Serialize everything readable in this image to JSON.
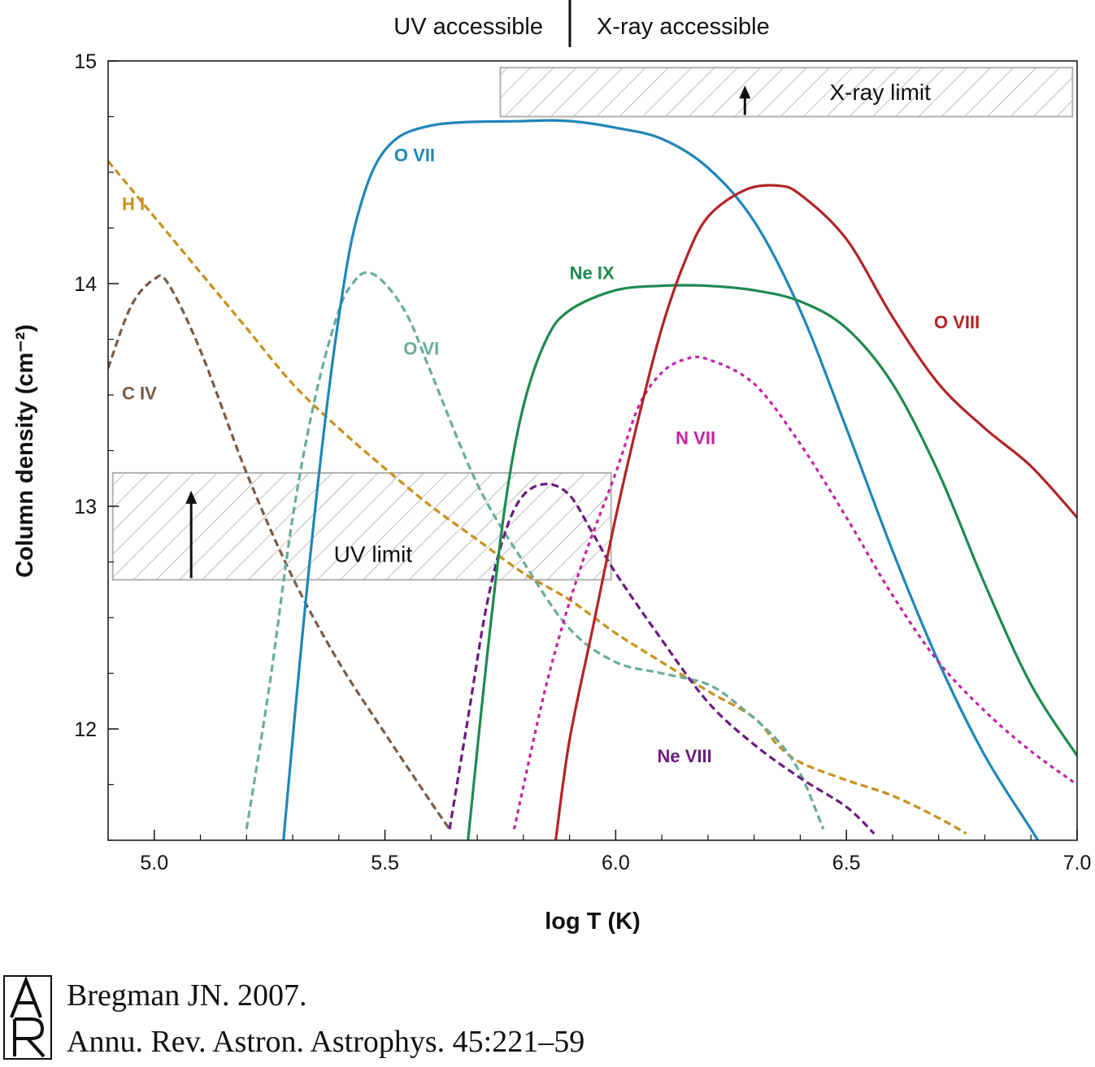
{
  "header": {
    "left_label": "UV accessible",
    "right_label": "X-ray accessible"
  },
  "chart_data": {
    "type": "line",
    "xlabel": "log T  (K)",
    "ylabel": "Column density (cm⁻²)",
    "xlim": [
      4.9,
      7.0
    ],
    "ylim": [
      11.5,
      15.0
    ],
    "x_ticks": [
      "5.0",
      "5.5",
      "6.0",
      "6.5",
      "7.0"
    ],
    "y_ticks": [
      "12",
      "13",
      "14",
      "15"
    ],
    "grid": false,
    "series": [
      {
        "name": "H I",
        "color": "#c8901a",
        "dash": "dashed",
        "points": [
          [
            4.9,
            14.55
          ],
          [
            5.0,
            14.3
          ],
          [
            5.1,
            14.05
          ],
          [
            5.2,
            13.8
          ],
          [
            5.3,
            13.55
          ],
          [
            5.4,
            13.35
          ],
          [
            5.5,
            13.17
          ],
          [
            5.6,
            13.0
          ],
          [
            5.7,
            12.85
          ],
          [
            5.8,
            12.7
          ],
          [
            5.9,
            12.58
          ],
          [
            6.0,
            12.43
          ],
          [
            6.1,
            12.3
          ],
          [
            6.2,
            12.17
          ],
          [
            6.3,
            12.05
          ],
          [
            6.35,
            11.93
          ],
          [
            6.4,
            11.85
          ],
          [
            6.5,
            11.77
          ],
          [
            6.6,
            11.7
          ],
          [
            6.7,
            11.6
          ],
          [
            6.76,
            11.53
          ]
        ]
      },
      {
        "name": "C IV",
        "color": "#7a5a44",
        "dash": "dashed",
        "points": [
          [
            4.9,
            13.62
          ],
          [
            4.95,
            13.9
          ],
          [
            5.0,
            14.02
          ],
          [
            5.03,
            14.0
          ],
          [
            5.1,
            13.7
          ],
          [
            5.2,
            13.15
          ],
          [
            5.3,
            12.68
          ],
          [
            5.4,
            12.3
          ],
          [
            5.5,
            11.98
          ],
          [
            5.6,
            11.67
          ],
          [
            5.64,
            11.55
          ]
        ]
      },
      {
        "name": "O VI",
        "color": "#6aab9c",
        "dash": "dashed",
        "points": [
          [
            5.2,
            11.55
          ],
          [
            5.25,
            12.2
          ],
          [
            5.3,
            12.95
          ],
          [
            5.35,
            13.5
          ],
          [
            5.4,
            13.88
          ],
          [
            5.43,
            14.0
          ],
          [
            5.46,
            14.05
          ],
          [
            5.5,
            14.0
          ],
          [
            5.55,
            13.85
          ],
          [
            5.6,
            13.6
          ],
          [
            5.7,
            13.1
          ],
          [
            5.8,
            12.75
          ],
          [
            5.9,
            12.45
          ],
          [
            6.0,
            12.3
          ],
          [
            6.1,
            12.25
          ],
          [
            6.2,
            12.2
          ],
          [
            6.27,
            12.1
          ],
          [
            6.35,
            11.95
          ],
          [
            6.4,
            11.8
          ],
          [
            6.45,
            11.55
          ]
        ]
      },
      {
        "name": "O VII",
        "color": "#1f86b8",
        "dash": "solid",
        "points": [
          [
            5.28,
            11.5
          ],
          [
            5.32,
            12.4
          ],
          [
            5.36,
            13.2
          ],
          [
            5.4,
            13.85
          ],
          [
            5.44,
            14.3
          ],
          [
            5.5,
            14.6
          ],
          [
            5.6,
            14.71
          ],
          [
            5.8,
            14.73
          ],
          [
            5.9,
            14.73
          ],
          [
            6.0,
            14.7
          ],
          [
            6.1,
            14.65
          ],
          [
            6.2,
            14.52
          ],
          [
            6.3,
            14.28
          ],
          [
            6.4,
            13.88
          ],
          [
            6.5,
            13.35
          ],
          [
            6.6,
            12.8
          ],
          [
            6.7,
            12.3
          ],
          [
            6.8,
            11.88
          ],
          [
            6.9,
            11.55
          ],
          [
            6.93,
            11.45
          ]
        ]
      },
      {
        "name": "Ne VIII",
        "color": "#6a1b7f",
        "dash": "dashed",
        "points": [
          [
            5.64,
            11.55
          ],
          [
            5.68,
            12.05
          ],
          [
            5.72,
            12.55
          ],
          [
            5.76,
            12.88
          ],
          [
            5.8,
            13.05
          ],
          [
            5.85,
            13.1
          ],
          [
            5.9,
            13.05
          ],
          [
            5.95,
            12.88
          ],
          [
            6.0,
            12.7
          ],
          [
            6.1,
            12.4
          ],
          [
            6.2,
            12.12
          ],
          [
            6.3,
            11.93
          ],
          [
            6.4,
            11.78
          ],
          [
            6.5,
            11.65
          ],
          [
            6.56,
            11.53
          ]
        ]
      },
      {
        "name": "Ne IX",
        "color": "#1e8a4f",
        "dash": "solid",
        "points": [
          [
            5.68,
            11.5
          ],
          [
            5.72,
            12.3
          ],
          [
            5.76,
            13.0
          ],
          [
            5.8,
            13.45
          ],
          [
            5.85,
            13.75
          ],
          [
            5.9,
            13.88
          ],
          [
            6.0,
            13.97
          ],
          [
            6.1,
            13.99
          ],
          [
            6.2,
            13.99
          ],
          [
            6.3,
            13.97
          ],
          [
            6.4,
            13.92
          ],
          [
            6.5,
            13.8
          ],
          [
            6.6,
            13.55
          ],
          [
            6.7,
            13.15
          ],
          [
            6.8,
            12.65
          ],
          [
            6.9,
            12.2
          ],
          [
            7.0,
            11.88
          ]
        ]
      },
      {
        "name": "N VII",
        "color": "#c224a2",
        "dash": "dotted",
        "points": [
          [
            5.78,
            11.55
          ],
          [
            5.85,
            12.2
          ],
          [
            5.92,
            12.7
          ],
          [
            6.0,
            13.15
          ],
          [
            6.05,
            13.45
          ],
          [
            6.1,
            13.6
          ],
          [
            6.15,
            13.66
          ],
          [
            6.2,
            13.66
          ],
          [
            6.3,
            13.55
          ],
          [
            6.4,
            13.28
          ],
          [
            6.5,
            12.95
          ],
          [
            6.6,
            12.6
          ],
          [
            6.7,
            12.3
          ],
          [
            6.8,
            12.08
          ],
          [
            6.9,
            11.9
          ],
          [
            7.0,
            11.75
          ]
        ]
      },
      {
        "name": "O VIII",
        "color": "#b22428",
        "dash": "solid",
        "points": [
          [
            5.87,
            11.5
          ],
          [
            5.9,
            11.95
          ],
          [
            5.95,
            12.45
          ],
          [
            6.0,
            12.95
          ],
          [
            6.05,
            13.4
          ],
          [
            6.1,
            13.8
          ],
          [
            6.15,
            14.1
          ],
          [
            6.2,
            14.3
          ],
          [
            6.28,
            14.42
          ],
          [
            6.35,
            14.44
          ],
          [
            6.4,
            14.4
          ],
          [
            6.5,
            14.2
          ],
          [
            6.6,
            13.85
          ],
          [
            6.7,
            13.55
          ],
          [
            6.8,
            13.35
          ],
          [
            6.9,
            13.18
          ],
          [
            7.0,
            12.95
          ]
        ]
      }
    ],
    "series_labels": [
      {
        "text": "H I",
        "x": 4.93,
        "y": 14.33
      },
      {
        "text": "C IV",
        "x": 4.93,
        "y": 13.48
      },
      {
        "text": "O VI",
        "x": 5.54,
        "y": 13.68
      },
      {
        "text": "O VII",
        "x": 5.52,
        "y": 14.55
      },
      {
        "text": "Ne VIII",
        "x": 6.09,
        "y": 11.85
      },
      {
        "text": "Ne IX",
        "x": 5.9,
        "y": 14.02
      },
      {
        "text": "N VII",
        "x": 6.13,
        "y": 13.28
      },
      {
        "text": "O VIII",
        "x": 6.69,
        "y": 13.8
      }
    ],
    "uv_limit": {
      "label": "UV limit",
      "xmin": 4.91,
      "xmax": 5.99,
      "ymin": 12.67,
      "ymax": 13.15,
      "arrow_x": 5.08
    },
    "xray_limit": {
      "label": "X-ray limit",
      "xmin": 5.75,
      "xmax": 6.99,
      "ymin": 14.75,
      "ymax": 14.97,
      "arrow_x": 6.28
    }
  },
  "credit": {
    "line1": "Bregman JN. 2007.",
    "line2": "Annu. Rev. Astron. Astrophys. 45:221–59",
    "logo_text": "AR"
  }
}
